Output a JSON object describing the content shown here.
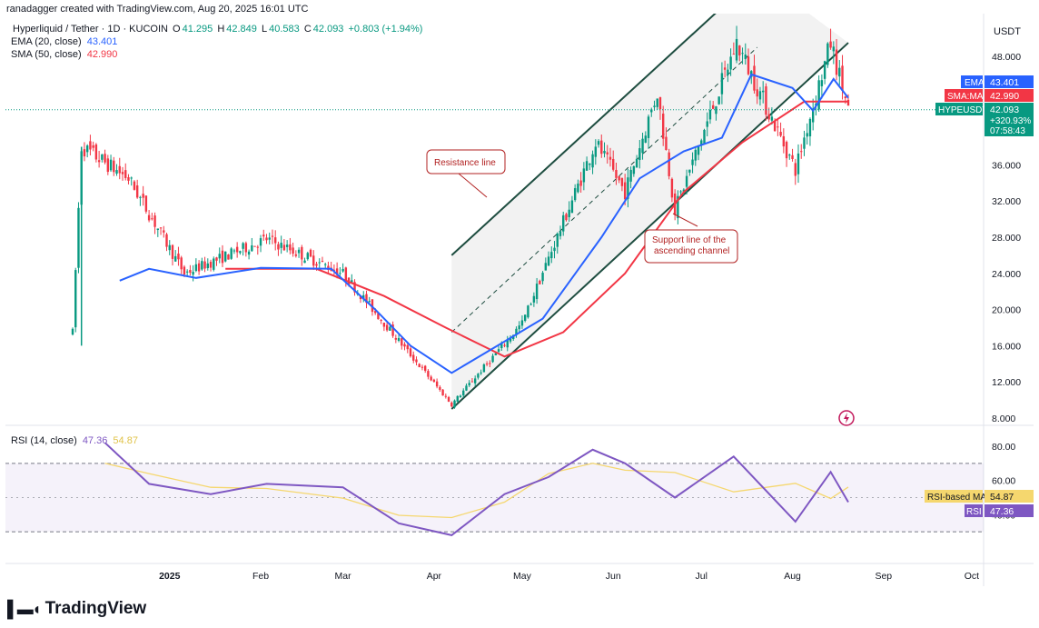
{
  "credit": "ranadagger created with TradingView.com, Aug 20, 2025 16:01 UTC",
  "symbol_title": "Hyperliquid / Tether · 1D · KUCOIN",
  "ohlc": {
    "o_label": "O",
    "o": "41.295",
    "h_label": "H",
    "h": "42.849",
    "l_label": "L",
    "l": "40.583",
    "c_label": "C",
    "c": "42.093",
    "change": "+0.803 (+1.94%)"
  },
  "ema_legend": {
    "label": "EMA (20, close)",
    "value": "43.401"
  },
  "sma_legend": {
    "label": "SMA (50, close)",
    "value": "42.990"
  },
  "rsi_legend": {
    "label": "RSI (14, close)",
    "value": "47.36",
    "ma_value": "54.87"
  },
  "currency": "USDT",
  "price_ticks": [
    "48.000",
    "44.000",
    "40.000",
    "36.000",
    "32.000",
    "28.000",
    "24.000",
    "20.000",
    "16.000",
    "12.000",
    "8.000"
  ],
  "rsi_ticks": [
    "80.00",
    "60.00",
    "40.00"
  ],
  "time_ticks": [
    "2025",
    "Feb",
    "Mar",
    "Apr",
    "May",
    "Jun",
    "Jul",
    "Aug",
    "Sep",
    "Oct"
  ],
  "price_labels": {
    "ema": {
      "name": "EMA",
      "value": "43.401"
    },
    "sma": {
      "name": "SMA:MA",
      "value": "42.990"
    },
    "last": {
      "name": "HYPEUSDT",
      "value": "42.093",
      "change": "+320.93%",
      "countdown": "07:58:43"
    }
  },
  "rsi_labels": {
    "ma": {
      "name": "RSI-based MA",
      "value": "54.87"
    },
    "rsi": {
      "name": "RSI",
      "value": "47.36"
    }
  },
  "annotations": {
    "resistance": "Resistance line",
    "support_line1": "Support line of the",
    "support_line2": "ascending channel"
  },
  "brand": "TradingView",
  "colors": {
    "up": "#089981",
    "down": "#f23645",
    "ema": "#2962ff",
    "sma": "#f23645",
    "rsi": "#7e57c2",
    "rsi_ma": "#f5d76e",
    "channel": "#1e4d40",
    "annotation": "#b22222"
  },
  "chart_data": {
    "type": "candlestick",
    "price_range": [
      8,
      50
    ],
    "rsi_range": [
      20,
      88
    ],
    "rsi_bands": [
      70,
      30
    ],
    "date_range": [
      "2024-11-29",
      "2025-08-20"
    ],
    "last_close": 42.093,
    "key_points": [
      {
        "date": "2024-11-29",
        "low": 10,
        "high": 17.5
      },
      {
        "date": "2024-12-02",
        "high": 38.0
      },
      {
        "date": "2024-12-18",
        "close": 34.5
      },
      {
        "date": "2025-01-06",
        "close": 24.0
      },
      {
        "date": "2025-02-03",
        "close": 27.8
      },
      {
        "date": "2025-03-01",
        "close": 24.0
      },
      {
        "date": "2025-04-07",
        "low": 9.5
      },
      {
        "date": "2025-05-01",
        "close": 18.5
      },
      {
        "date": "2025-05-26",
        "high": 38.5
      },
      {
        "date": "2025-06-05",
        "close": 33.0
      },
      {
        "date": "2025-06-16",
        "high": 44.0
      },
      {
        "date": "2025-06-22",
        "low": 31.0
      },
      {
        "date": "2025-07-13",
        "high": 49.5
      },
      {
        "date": "2025-08-02",
        "low": 35.5
      },
      {
        "date": "2025-08-14",
        "high": 49.5
      },
      {
        "date": "2025-08-20",
        "close": 42.093
      }
    ],
    "ema20_points": [
      {
        "date": "2024-12-15",
        "v": 23.2
      },
      {
        "date": "2024-12-25",
        "v": 24.5
      },
      {
        "date": "2025-01-10",
        "v": 23.5
      },
      {
        "date": "2025-02-01",
        "v": 24.6
      },
      {
        "date": "2025-02-25",
        "v": 24.5
      },
      {
        "date": "2025-03-12",
        "v": 20.0
      },
      {
        "date": "2025-03-24",
        "v": 16.0
      },
      {
        "date": "2025-04-07",
        "v": 13.0
      },
      {
        "date": "2025-04-20",
        "v": 15.5
      },
      {
        "date": "2025-05-08",
        "v": 19.0
      },
      {
        "date": "2025-05-28",
        "v": 28.0
      },
      {
        "date": "2025-06-10",
        "v": 34.5
      },
      {
        "date": "2025-06-25",
        "v": 37.5
      },
      {
        "date": "2025-07-08",
        "v": 39.0
      },
      {
        "date": "2025-07-18",
        "v": 46.0
      },
      {
        "date": "2025-08-01",
        "v": 44.5
      },
      {
        "date": "2025-08-08",
        "v": 42.0
      },
      {
        "date": "2025-08-15",
        "v": 45.5
      },
      {
        "date": "2025-08-20",
        "v": 43.4
      }
    ],
    "sma50_points": [
      {
        "date": "2025-01-20",
        "v": 24.5
      },
      {
        "date": "2025-02-20",
        "v": 24.5
      },
      {
        "date": "2025-03-15",
        "v": 21.5
      },
      {
        "date": "2025-04-05",
        "v": 18.0
      },
      {
        "date": "2025-04-25",
        "v": 14.8
      },
      {
        "date": "2025-05-15",
        "v": 17.5
      },
      {
        "date": "2025-06-05",
        "v": 24.0
      },
      {
        "date": "2025-06-25",
        "v": 33.0
      },
      {
        "date": "2025-07-15",
        "v": 38.5
      },
      {
        "date": "2025-08-05",
        "v": 43.0
      },
      {
        "date": "2025-08-20",
        "v": 43.0
      }
    ],
    "rsi_points": [
      {
        "date": "2024-12-10",
        "v": 82
      },
      {
        "date": "2024-12-25",
        "v": 58
      },
      {
        "date": "2025-01-15",
        "v": 52
      },
      {
        "date": "2025-02-03",
        "v": 58
      },
      {
        "date": "2025-03-01",
        "v": 56
      },
      {
        "date": "2025-03-20",
        "v": 35
      },
      {
        "date": "2025-04-07",
        "v": 28
      },
      {
        "date": "2025-04-25",
        "v": 52
      },
      {
        "date": "2025-05-10",
        "v": 62
      },
      {
        "date": "2025-05-25",
        "v": 78
      },
      {
        "date": "2025-06-05",
        "v": 70
      },
      {
        "date": "2025-06-22",
        "v": 50
      },
      {
        "date": "2025-07-12",
        "v": 74
      },
      {
        "date": "2025-08-02",
        "v": 36
      },
      {
        "date": "2025-08-14",
        "v": 65
      },
      {
        "date": "2025-08-20",
        "v": 47.36
      }
    ],
    "resistance_line": [
      {
        "date": "2025-04-07",
        "v": 26
      },
      {
        "date": "2025-07-20",
        "v": 57
      }
    ],
    "support_line": [
      {
        "date": "2025-04-07",
        "v": 9
      },
      {
        "date": "2025-08-20",
        "v": 49.5
      }
    ]
  }
}
